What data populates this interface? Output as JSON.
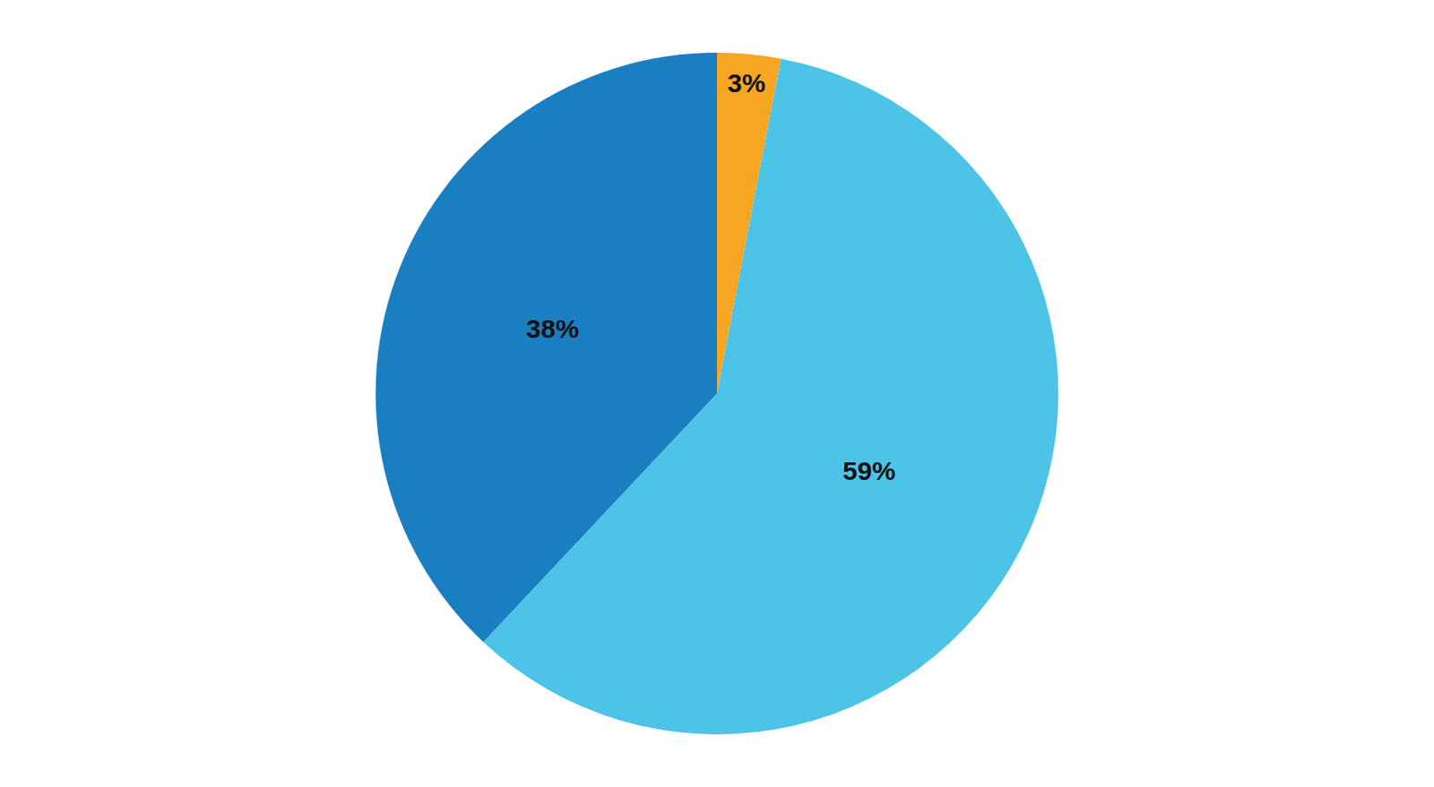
{
  "chart_data": {
    "type": "pie",
    "values": [
      3,
      59,
      38
    ],
    "value_labels": [
      "3%",
      "59%",
      "38%"
    ],
    "data_labels": true,
    "colors": [
      "#F5A623",
      "#4DC3E8",
      "#1A7FC1"
    ]
  }
}
